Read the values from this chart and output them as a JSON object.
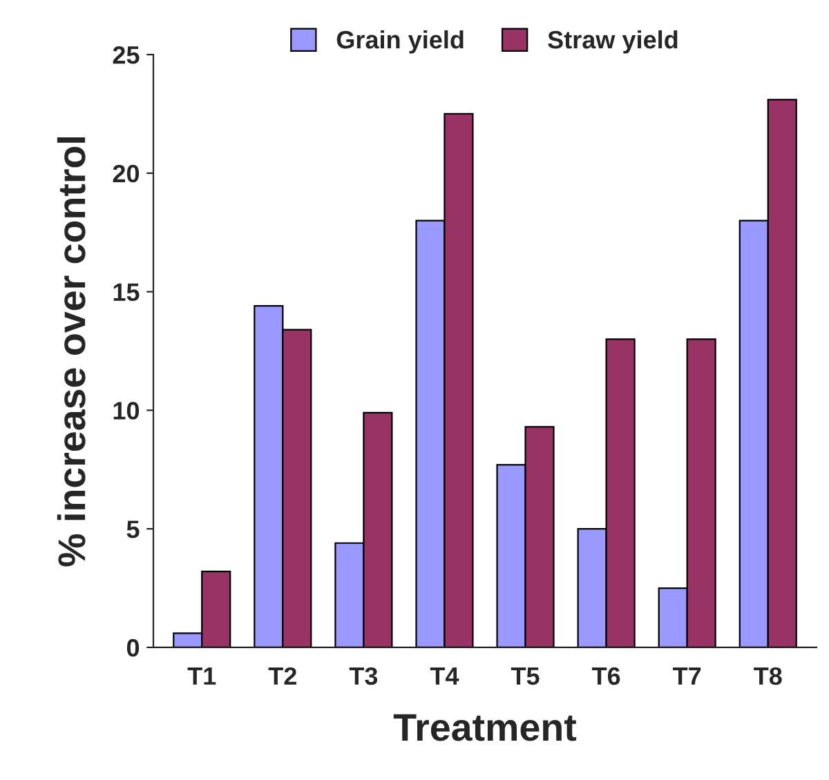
{
  "chart_data": {
    "type": "bar",
    "xlabel": "Treatment",
    "ylabel": "% increase over control",
    "categories": [
      "T1",
      "T2",
      "T3",
      "T4",
      "T5",
      "T6",
      "T7",
      "T8"
    ],
    "series": [
      {
        "name": "Grain yield",
        "color": "#9999ff",
        "values": [
          0.6,
          14.4,
          4.4,
          18.0,
          7.7,
          5.0,
          2.5,
          18.0
        ]
      },
      {
        "name": "Straw yield",
        "color": "#993366",
        "values": [
          3.2,
          13.4,
          9.9,
          22.5,
          9.3,
          13.0,
          13.0,
          23.1
        ]
      }
    ],
    "ylim": [
      0,
      25
    ],
    "yticks": [
      0,
      5,
      10,
      15,
      20,
      25
    ],
    "grid": false,
    "legend": "top"
  }
}
